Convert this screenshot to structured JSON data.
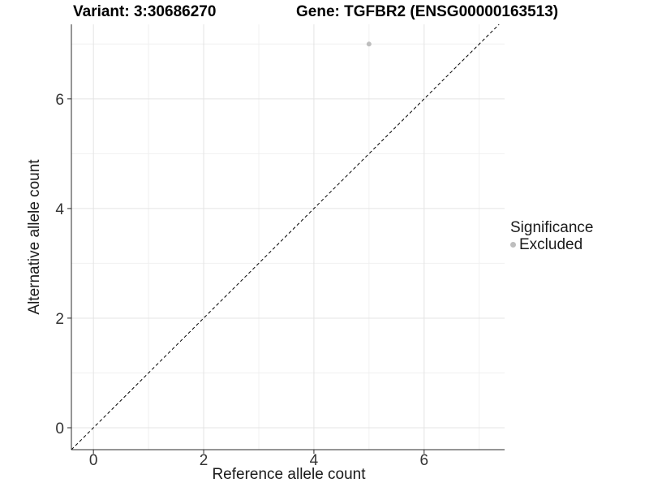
{
  "chart_data": {
    "type": "scatter",
    "titles": [
      "Variant: 3:30686270",
      "Gene: TGFBR2 (ENSG00000163513)"
    ],
    "xlabel": "Reference allele count",
    "ylabel": "Alternative allele count",
    "xlim": [
      -0.4,
      7.46
    ],
    "ylim": [
      -0.4,
      7.36
    ],
    "x_major_ticks": [
      0,
      2,
      4,
      6
    ],
    "y_major_ticks": [
      0,
      2,
      4,
      6
    ],
    "x_minor_gridlines": [
      1,
      3,
      5,
      7
    ],
    "y_minor_gridlines": [
      1,
      3,
      5,
      7
    ],
    "grid": true,
    "points": [
      {
        "x": 5,
        "y": 7,
        "series": "Excluded"
      }
    ],
    "reference_line": {
      "type": "abline",
      "intercept": 0,
      "slope": 1,
      "style": "dashed",
      "color": "#000000"
    },
    "legend": {
      "position": "right",
      "title": "Significance",
      "items": [
        {
          "label": "Excluded",
          "color": "#bebebe"
        }
      ]
    },
    "colors": {
      "point": "#bebebe",
      "grid_major": "#e4e4e4",
      "grid_minor": "#f0f0f0",
      "axis": "#2b2b2b",
      "tick_text": "#333333"
    }
  }
}
